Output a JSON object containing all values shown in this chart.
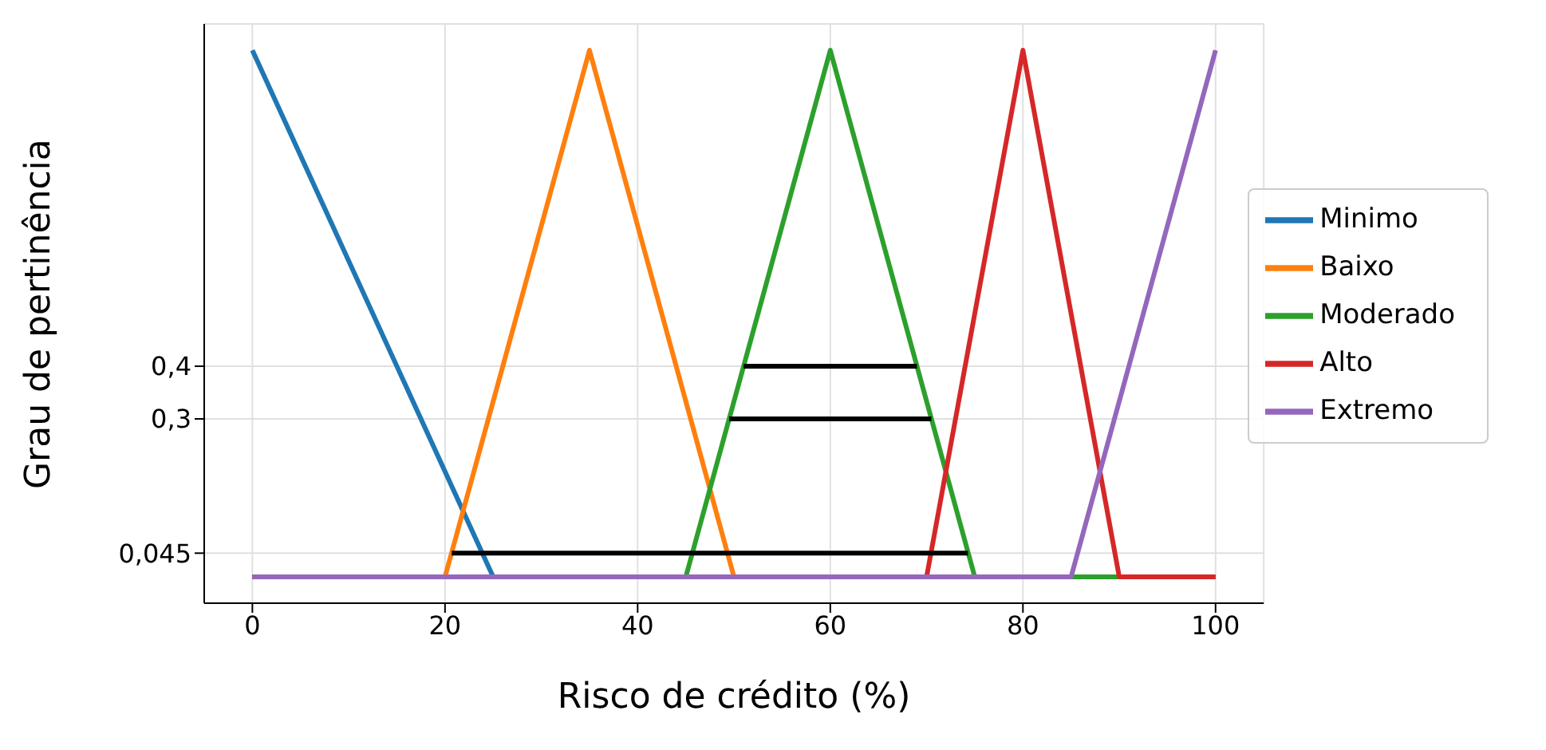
{
  "chart_data": {
    "type": "line",
    "xlabel": "Risco de crédito (%)",
    "ylabel": "Grau de pertinência",
    "xlim": [
      -5,
      105
    ],
    "xticks": [
      0,
      20,
      40,
      60,
      80,
      100
    ],
    "ylim": [
      -0.05,
      1.05
    ],
    "yticks": [
      {
        "value": 0.045,
        "label": "0,045"
      },
      {
        "value": 0.3,
        "label": "0,3"
      },
      {
        "value": 0.4,
        "label": "0,4"
      }
    ],
    "grid": true,
    "legend": "right",
    "line_style": "solid",
    "marker": "none",
    "series": [
      {
        "name": "Minimo",
        "color": "#1f77b4",
        "x": [
          0,
          25
        ],
        "values": [
          1,
          0
        ]
      },
      {
        "name": "Baixo",
        "color": "#ff7f0e",
        "x": [
          0,
          20,
          35,
          50,
          100
        ],
        "values": [
          0,
          0,
          1,
          0,
          0
        ]
      },
      {
        "name": "Moderado",
        "color": "#2ca02c",
        "x": [
          0,
          45,
          60,
          75,
          100
        ],
        "values": [
          0,
          0,
          1,
          0,
          0
        ]
      },
      {
        "name": "Alto",
        "color": "#d62728",
        "x": [
          0,
          70,
          80,
          90,
          100
        ],
        "values": [
          0,
          0,
          1,
          0,
          0
        ]
      },
      {
        "name": "Extremo",
        "color": "#9467bd",
        "x": [
          0,
          85,
          100
        ],
        "values": [
          0,
          0,
          1
        ]
      },
      {
        "color": "#000000",
        "x": [
          51,
          69
        ],
        "values": [
          0.4,
          0.4
        ]
      },
      {
        "color": "#000000",
        "x": [
          49.5,
          70.5
        ],
        "values": [
          0.3,
          0.3
        ]
      },
      {
        "color": "#000000",
        "x": [
          20.7,
          74.3
        ],
        "values": [
          0.045,
          0.045
        ]
      }
    ]
  }
}
